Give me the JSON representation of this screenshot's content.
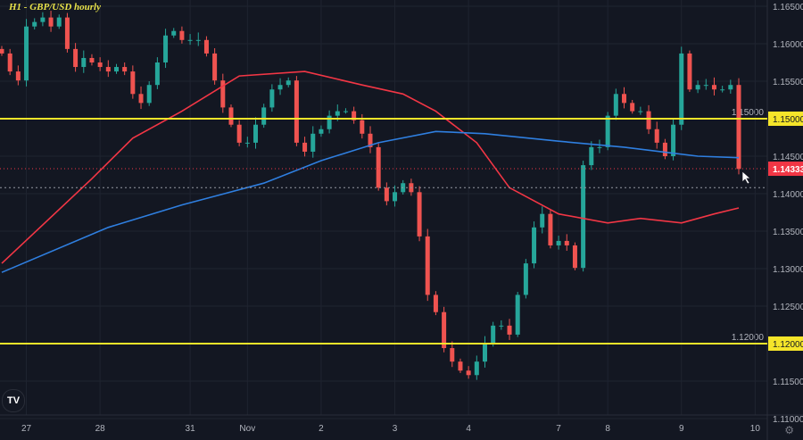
{
  "chart_data": {
    "type": "candlestick",
    "title": "H1 - GBP/USD hourly",
    "ylim": [
      1.11,
      1.165
    ],
    "y_ticks": [
      "1.16500",
      "1.16000",
      "1.15500",
      "1.15000",
      "1.14500",
      "1.14000",
      "1.13500",
      "1.13000",
      "1.12500",
      "1.12000",
      "1.11500",
      "1.11000"
    ],
    "x_labels": [
      {
        "label": "27",
        "index": 3
      },
      {
        "label": "28",
        "index": 12
      },
      {
        "label": "31",
        "index": 23
      },
      {
        "label": "Nov",
        "index": 30
      },
      {
        "label": "2",
        "index": 39
      },
      {
        "label": "3",
        "index": 48
      },
      {
        "label": "4",
        "index": 57
      },
      {
        "label": "7",
        "index": 68
      },
      {
        "label": "8",
        "index": 74
      },
      {
        "label": "9",
        "index": 83
      },
      {
        "label": "10",
        "index": 92
      }
    ],
    "closes": [
      1.1587,
      1.1563,
      1.1551,
      1.1623,
      1.1629,
      1.1635,
      1.1623,
      1.1635,
      1.1593,
      1.1569,
      1.1581,
      1.1575,
      1.1569,
      1.1563,
      1.1569,
      1.1563,
      1.1533,
      1.1521,
      1.1545,
      1.1575,
      1.1611,
      1.1617,
      1.1605,
      1.1605,
      1.1605,
      1.1587,
      1.1551,
      1.1515,
      1.1492,
      1.1468,
      1.1468,
      1.1492,
      1.1515,
      1.1539,
      1.1545,
      1.1551,
      1.1468,
      1.1456,
      1.148,
      1.1486,
      1.1504,
      1.151,
      1.151,
      1.1498,
      1.148,
      1.1462,
      1.1408,
      1.139,
      1.1402,
      1.1414,
      1.1402,
      1.1343,
      1.1265,
      1.1242,
      1.1194,
      1.1176,
      1.1164,
      1.1158,
      1.1176,
      1.12,
      1.1224,
      1.1224,
      1.1212,
      1.1265,
      1.1307,
      1.1355,
      1.1373,
      1.1331,
      1.1337,
      1.1331,
      1.1301,
      1.1438,
      1.1462,
      1.1462,
      1.1504,
      1.1533,
      1.1521,
      1.151,
      1.151,
      1.1486,
      1.1468,
      1.145,
      1.1492,
      1.1587,
      1.1539,
      1.1545,
      1.1545,
      1.1539,
      1.1539,
      1.1545,
      1.1433
    ],
    "moving_averages": [
      {
        "color": "#f23645",
        "points": [
          [
            0,
            1.1307
          ],
          [
            11,
            1.142
          ],
          [
            16,
            1.1474
          ],
          [
            22,
            1.151
          ],
          [
            29,
            1.1557
          ],
          [
            37,
            1.1563
          ],
          [
            44,
            1.1545
          ],
          [
            49,
            1.1533
          ],
          [
            53,
            1.151
          ],
          [
            58,
            1.1468
          ],
          [
            62,
            1.1408
          ],
          [
            68,
            1.1373
          ],
          [
            74,
            1.1361
          ],
          [
            78,
            1.1367
          ],
          [
            83,
            1.1361
          ],
          [
            87,
            1.1373
          ],
          [
            90,
            1.1381
          ]
        ]
      },
      {
        "color": "#2f7fe0",
        "points": [
          [
            0,
            1.1295
          ],
          [
            13,
            1.1355
          ],
          [
            22,
            1.1385
          ],
          [
            32,
            1.1414
          ],
          [
            39,
            1.1444
          ],
          [
            46,
            1.1468
          ],
          [
            53,
            1.1483
          ],
          [
            59,
            1.148
          ],
          [
            68,
            1.147
          ],
          [
            76,
            1.1462
          ],
          [
            85,
            1.145
          ],
          [
            90,
            1.1448
          ]
        ]
      }
    ],
    "horizontal_levels": [
      {
        "value": 1.15,
        "label": "1.15000",
        "color": "#f5e52a"
      },
      {
        "value": 1.12,
        "label": "1.12000",
        "color": "#f5e52a"
      }
    ],
    "last_price": {
      "value": 1.14333,
      "label": "1.14333",
      "color": "#f23645"
    },
    "crosshair_price": 1.1408,
    "up_color": "#26a69a",
    "down_color": "#ef5350",
    "grid": true
  },
  "logo_text": "TV"
}
